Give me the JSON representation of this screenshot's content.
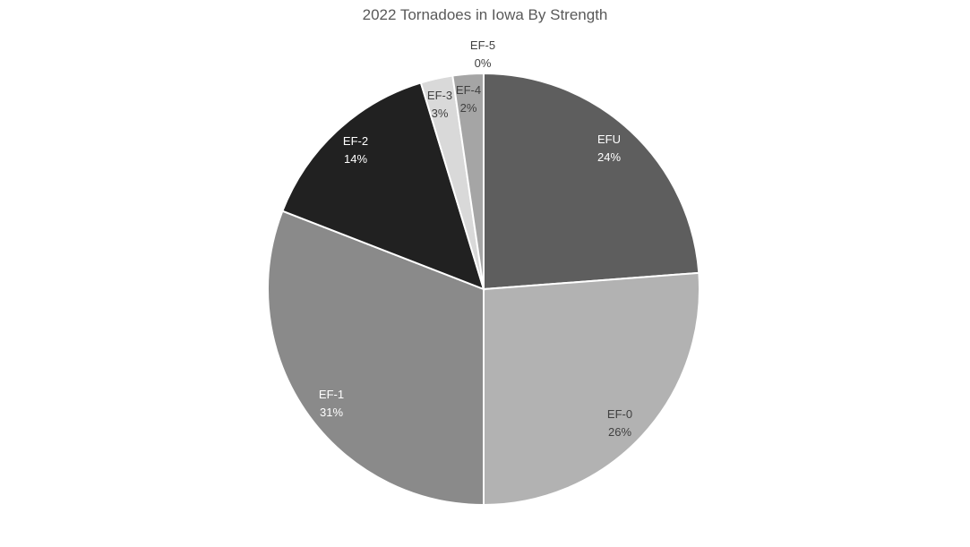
{
  "chart_data": {
    "type": "pie",
    "title": "2022 Tornadoes in Iowa By Strength",
    "categories": [
      "EFU",
      "EF-0",
      "EF-1",
      "EF-2",
      "EF-3",
      "EF-4",
      "EF-5"
    ],
    "values": [
      24,
      26,
      31,
      14,
      3,
      2,
      0
    ],
    "estimated_fractions": [
      23.8,
      26.2,
      30.9,
      14.4,
      2.4,
      2.3,
      0.0
    ],
    "labels": [
      "24%",
      "26%",
      "31%",
      "14%",
      "3%",
      "2%",
      "0%"
    ],
    "colors": [
      "#5e5e5e",
      "#b2b2b2",
      "#8a8a8a",
      "#212121",
      "#d9d9d9",
      "#a5a5a5",
      "#ffffff"
    ],
    "label_colors": [
      "#ffffff",
      "#404040",
      "#ffffff",
      "#ffffff",
      "#404040",
      "#404040",
      "#404040"
    ],
    "legend": "none",
    "start_angle_deg": 0,
    "direction": "clockwise"
  }
}
